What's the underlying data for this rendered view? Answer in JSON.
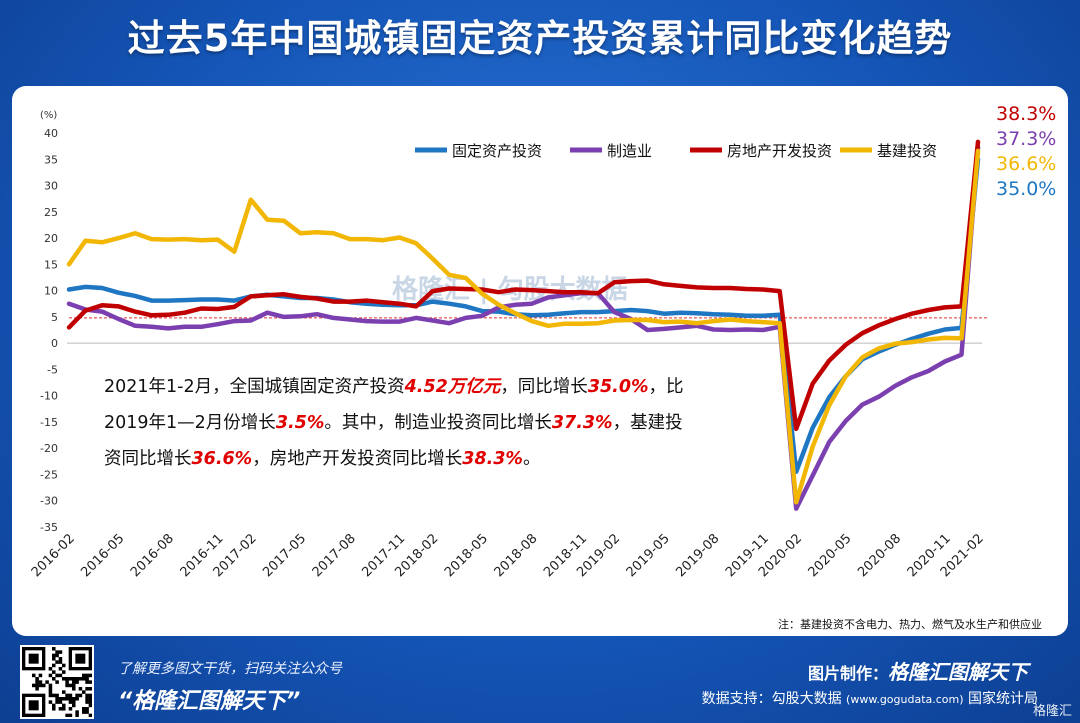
{
  "title": "过去5年中国城镇固定资产投资累计同比变化趋势",
  "chart_data": {
    "type": "line",
    "unit_label": "(%)",
    "ylim": [
      -35,
      40
    ],
    "yticks": [
      40,
      35,
      30,
      25,
      20,
      15,
      10,
      5,
      0,
      -5,
      -10,
      -15,
      -20,
      -25,
      -30,
      -35
    ],
    "x": [
      "2016-02",
      "2016-03",
      "2016-04",
      "2016-05",
      "2016-06",
      "2016-07",
      "2016-08",
      "2016-09",
      "2016-10",
      "2016-11",
      "2016-12",
      "2017-02",
      "2017-03",
      "2017-04",
      "2017-05",
      "2017-06",
      "2017-07",
      "2017-08",
      "2017-09",
      "2017-10",
      "2017-11",
      "2017-12",
      "2018-02",
      "2018-03",
      "2018-04",
      "2018-05",
      "2018-06",
      "2018-07",
      "2018-08",
      "2018-09",
      "2018-10",
      "2018-11",
      "2018-12",
      "2019-02",
      "2019-03",
      "2019-04",
      "2019-05",
      "2019-06",
      "2019-07",
      "2019-08",
      "2019-09",
      "2019-10",
      "2019-11",
      "2019-12",
      "2020-02",
      "2020-03",
      "2020-04",
      "2020-05",
      "2020-06",
      "2020-07",
      "2020-08",
      "2020-09",
      "2020-10",
      "2020-11",
      "2020-12",
      "2021-02"
    ],
    "xtick_labels": [
      "2016-02",
      "2016-05",
      "2016-08",
      "2016-11",
      "2017-02",
      "2017-05",
      "2017-08",
      "2017-11",
      "2018-02",
      "2018-05",
      "2018-08",
      "2018-11",
      "2019-02",
      "2019-05",
      "2019-08",
      "2019-11",
      "2020-02",
      "2020-05",
      "2020-08",
      "2020-11",
      "2021-02"
    ],
    "series": [
      {
        "name": "固定资产投资",
        "color": "#1f77c4",
        "values": [
          10.2,
          10.7,
          10.5,
          9.6,
          9.0,
          8.1,
          8.1,
          8.2,
          8.3,
          8.3,
          8.1,
          8.9,
          9.2,
          8.9,
          8.6,
          8.6,
          8.3,
          7.8,
          7.5,
          7.3,
          7.2,
          7.2,
          7.9,
          7.5,
          7.0,
          6.1,
          6.0,
          5.5,
          5.3,
          5.4,
          5.7,
          5.9,
          5.9,
          6.1,
          6.3,
          6.1,
          5.6,
          5.8,
          5.7,
          5.5,
          5.4,
          5.2,
          5.2,
          5.4,
          -24.5,
          -16.1,
          -10.3,
          -6.3,
          -3.1,
          -1.6,
          -0.3,
          0.8,
          1.8,
          2.6,
          2.9,
          35.0
        ]
      },
      {
        "name": "制造业",
        "color": "#7b3fb0",
        "values": [
          7.5,
          6.4,
          6.0,
          4.6,
          3.3,
          3.1,
          2.8,
          3.1,
          3.1,
          3.6,
          4.2,
          4.3,
          5.8,
          5.0,
          5.1,
          5.5,
          4.8,
          4.5,
          4.2,
          4.1,
          4.1,
          4.8,
          4.3,
          3.8,
          4.8,
          5.2,
          6.8,
          7.3,
          7.5,
          8.7,
          9.1,
          9.5,
          9.5,
          5.9,
          4.6,
          2.5,
          2.7,
          3.0,
          3.3,
          2.6,
          2.5,
          2.6,
          2.5,
          3.1,
          -31.5,
          -25.2,
          -18.8,
          -14.8,
          -11.7,
          -10.2,
          -8.1,
          -6.5,
          -5.3,
          -3.5,
          -2.2,
          37.3
        ]
      },
      {
        "name": "房地产开发投资",
        "color": "#c00000",
        "values": [
          3.0,
          6.2,
          7.2,
          7.0,
          6.0,
          5.3,
          5.4,
          5.8,
          6.6,
          6.5,
          6.9,
          8.9,
          9.1,
          9.3,
          8.8,
          8.5,
          7.9,
          7.9,
          8.1,
          7.8,
          7.5,
          7.0,
          9.9,
          10.4,
          10.3,
          10.2,
          9.7,
          10.2,
          10.1,
          9.9,
          9.7,
          9.7,
          9.5,
          11.6,
          11.8,
          11.9,
          11.2,
          10.9,
          10.6,
          10.5,
          10.5,
          10.3,
          10.2,
          9.9,
          -16.3,
          -7.7,
          -3.3,
          -0.3,
          1.9,
          3.4,
          4.6,
          5.6,
          6.3,
          6.8,
          7.0,
          38.3
        ]
      },
      {
        "name": "基建投资",
        "color": "#f2b705",
        "values": [
          15.0,
          19.5,
          19.2,
          20.0,
          20.9,
          19.8,
          19.7,
          19.8,
          19.6,
          19.7,
          17.4,
          27.3,
          23.5,
          23.3,
          20.9,
          21.1,
          20.9,
          19.8,
          19.8,
          19.6,
          20.1,
          19.0,
          16.1,
          13.0,
          12.4,
          9.4,
          7.3,
          5.7,
          4.2,
          3.3,
          3.7,
          3.7,
          3.8,
          4.3,
          4.4,
          4.4,
          4.0,
          4.1,
          3.8,
          4.2,
          4.5,
          4.2,
          4.0,
          3.8,
          -30.3,
          -19.7,
          -11.8,
          -6.3,
          -2.7,
          -1.0,
          -0.1,
          0.2,
          0.7,
          1.0,
          0.9,
          36.6
        ]
      }
    ],
    "end_labels": [
      "38.3%",
      "37.3%",
      "36.6%",
      "35.0%"
    ],
    "reference_line": 4.8,
    "legend_position": "top-right",
    "grid": false
  },
  "annotation_lines": [
    [
      {
        "t": "2021年1-2月，全国城镇固定资产投资",
        "r": false
      },
      {
        "t": "4.52万亿元",
        "r": true
      },
      {
        "t": "，同比增长",
        "r": false
      },
      {
        "t": "35.0%",
        "r": true
      },
      {
        "t": "，比",
        "r": false
      }
    ],
    [
      {
        "t": "2019年1—2月份增长",
        "r": false
      },
      {
        "t": "3.5%",
        "r": true
      },
      {
        "t": "。其中，制造业投资同比增长",
        "r": false
      },
      {
        "t": "37.3%",
        "r": true
      },
      {
        "t": "，基建投",
        "r": false
      }
    ],
    [
      {
        "t": "资同比增长",
        "r": false
      },
      {
        "t": "36.6%",
        "r": true
      },
      {
        "t": "，房地产开发投资同比增长",
        "r": false
      },
      {
        "t": "38.3%",
        "r": true
      },
      {
        "t": "。",
        "r": false
      }
    ]
  ],
  "footnote": "注：基建投资不含电力、热力、燃气及水生产和供应业",
  "watermark": "格隆汇 | 勾股大数据",
  "footer": {
    "note": "了解更多图文干货，扫码关注公众号",
    "slogan": "“格隆汇图解天下”",
    "maker_label": "图片制作：",
    "maker_name": "格隆汇图解天下",
    "source_label": "数据支持：勾股大数据",
    "source_site": "(www.gogudata.com)",
    "source_tail": "国家统计局",
    "corner_logo": "格隆汇"
  },
  "colors": {
    "background": "#1556b8",
    "panel": "#ffffff",
    "accent_red": "#e00000"
  }
}
